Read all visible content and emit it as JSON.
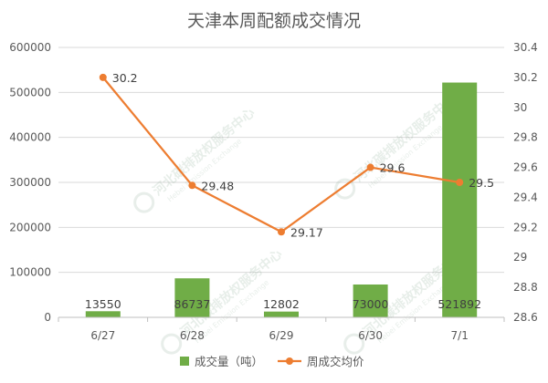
{
  "chart_data": {
    "type": "bar",
    "title": "天津本周配额成交情况",
    "categories": [
      "6/27",
      "6/28",
      "6/29",
      "6/30",
      "7/1"
    ],
    "series": [
      {
        "name": "成交量（吨）",
        "type": "bar",
        "axis": "left",
        "color": "#70ad47",
        "values": [
          13550,
          86737,
          12802,
          73000,
          521892
        ],
        "labels": [
          "13550",
          "86737",
          "12802",
          "73000",
          "521892"
        ]
      },
      {
        "name": "周成交均价",
        "type": "line",
        "axis": "right",
        "color": "#ed7d31",
        "values": [
          30.2,
          29.48,
          29.17,
          29.6,
          29.5
        ],
        "labels": [
          "30.2",
          "29.48",
          "29.17",
          "29.6",
          "29.5"
        ]
      }
    ],
    "y_left": {
      "ylim": [
        0,
        600000
      ],
      "ticks": [
        "0",
        "100000",
        "200000",
        "300000",
        "400000",
        "500000",
        "600000"
      ]
    },
    "y_right": {
      "ylim": [
        28.6,
        30.4
      ],
      "ticks": [
        "28.6",
        "28.8",
        "29",
        "29.2",
        "29.4",
        "29.6",
        "29.8",
        "30",
        "30.2",
        "30.4"
      ]
    },
    "grid": "horizontal",
    "legend_position": "bottom"
  },
  "watermark": {
    "text": "河北碳排放权服务中心",
    "subtext": "Hebei Emission Exchange"
  }
}
